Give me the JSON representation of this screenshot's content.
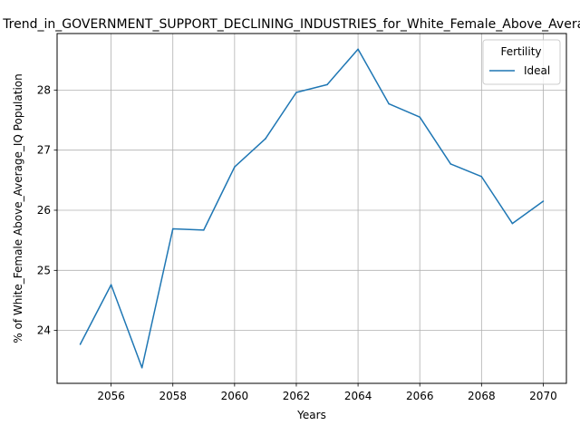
{
  "chart_data": {
    "type": "line",
    "title": "Trend_in_GOVERNMENT_SUPPORT_DECLINING_INDUSTRIES_for_White_Female_Above_Average_IQ",
    "xlabel": "Years",
    "ylabel": "% of White_Female Above_Average_IQ Population",
    "x": [
      2055,
      2056,
      2057,
      2058,
      2059,
      2060,
      2061,
      2062,
      2063,
      2064,
      2065,
      2066,
      2067,
      2068,
      2069,
      2070
    ],
    "series": [
      {
        "name": "Ideal",
        "color": "#1f77b4",
        "values": [
          23.77,
          24.76,
          23.38,
          25.69,
          25.67,
          26.72,
          27.19,
          27.96,
          28.09,
          28.68,
          27.77,
          27.55,
          26.77,
          26.56,
          25.78,
          26.15
        ]
      }
    ],
    "xlim": [
      2054.25,
      2070.75
    ],
    "ylim": [
      23.12,
      28.94
    ],
    "xticks": [
      2056,
      2058,
      2060,
      2062,
      2064,
      2066,
      2068,
      2070
    ],
    "yticks": [
      24,
      25,
      26,
      27,
      28
    ],
    "grid": true,
    "legend": {
      "title": "Fertility",
      "placement": "top-right"
    }
  }
}
